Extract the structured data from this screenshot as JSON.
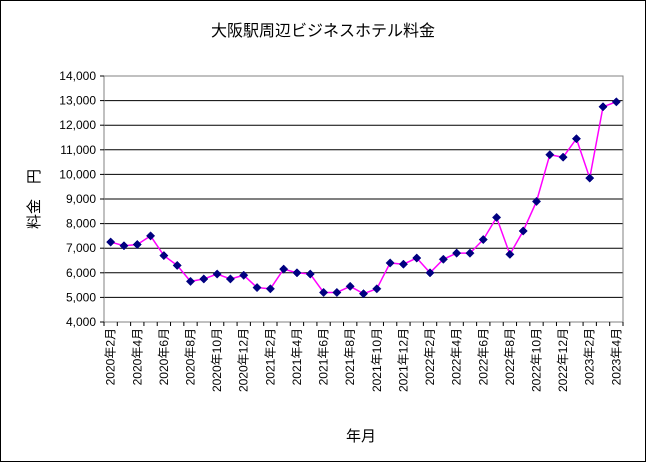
{
  "chart_data": {
    "type": "line",
    "title": "大阪駅周辺ビジネスホテル料金",
    "xlabel": "年月",
    "ylabel": "料金　円",
    "ylim": [
      4000,
      14000
    ],
    "ytick_step": 1000,
    "ytick_labels": [
      "4,000",
      "5,000",
      "6,000",
      "7,000",
      "8,000",
      "9,000",
      "10,000",
      "11,000",
      "12,000",
      "13,000",
      "14,000"
    ],
    "grid": true,
    "line_color": "#ff00ff",
    "marker_color": "#000080",
    "marker": "diamond",
    "x": [
      "2020年2月",
      "2020年3月",
      "2020年4月",
      "2020年5月",
      "2020年6月",
      "2020年7月",
      "2020年8月",
      "2020年9月",
      "2020年10月",
      "2020年11月",
      "2020年12月",
      "2021年1月",
      "2021年2月",
      "2021年3月",
      "2021年4月",
      "2021年5月",
      "2021年6月",
      "2021年7月",
      "2021年8月",
      "2021年9月",
      "2021年10月",
      "2021年11月",
      "2021年12月",
      "2022年1月",
      "2022年2月",
      "2022年3月",
      "2022年4月",
      "2022年5月",
      "2022年6月",
      "2022年7月",
      "2022年8月",
      "2022年9月",
      "2022年10月",
      "2022年11月",
      "2022年12月",
      "2023年1月",
      "2023年2月",
      "2023年3月",
      "2023年4月"
    ],
    "x_tick_labels": [
      "2020年2月",
      "2020年4月",
      "2020年6月",
      "2020年8月",
      "2020年10月",
      "2020年12月",
      "2021年2月",
      "2021年4月",
      "2021年6月",
      "2021年8月",
      "2021年10月",
      "2021年12月",
      "2022年2月",
      "2022年4月",
      "2022年6月",
      "2022年8月",
      "2022年10月",
      "2022年12月",
      "2023年2月",
      "2023年4月"
    ],
    "series": [
      {
        "name": "料金",
        "values": [
          7250,
          7100,
          7150,
          7500,
          6700,
          6300,
          5650,
          5750,
          5950,
          5750,
          5900,
          5400,
          5350,
          6150,
          6000,
          5950,
          5200,
          5200,
          5450,
          5150,
          5350,
          6400,
          6350,
          6600,
          6000,
          6550,
          6800,
          6800,
          7350,
          8250,
          6750,
          7700,
          8900,
          10800,
          10700,
          11450,
          9850,
          12750,
          12950
        ]
      }
    ]
  }
}
